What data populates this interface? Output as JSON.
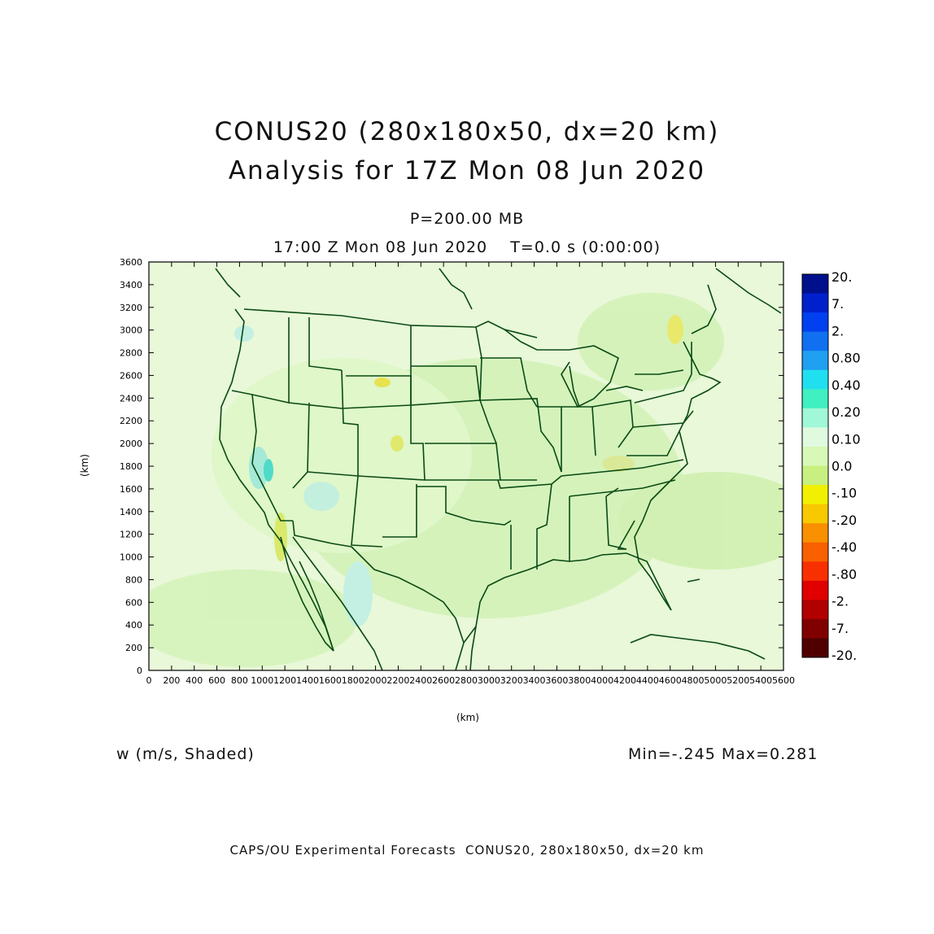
{
  "title": {
    "line1": "CONUS20 (280x180x50, dx=20 km)",
    "line2": "Analysis for 17Z Mon 08 Jun 2020"
  },
  "subtitle": {
    "pressure": "P=200.00 MB",
    "valid_time": "17:00 Z Mon 08 Jun 2020    T=0.0 s (0:00:00)"
  },
  "field_label": "w (m/s, Shaded)",
  "min_max": "Min=-.245 Max=0.281",
  "footer": "CAPS/OU Experimental Forecasts  CONUS20, 280x180x50, dx=20 km",
  "axes": {
    "xlabel": "(km)",
    "ylabel": "(km)",
    "xlim": [
      0,
      5600
    ],
    "ylim": [
      0,
      3600
    ],
    "xticks": [
      "0",
      "200",
      "400",
      "600",
      "800",
      "1000",
      "1200",
      "1400",
      "1600",
      "1800",
      "2000",
      "2200",
      "2400",
      "2600",
      "2800",
      "3000",
      "3200",
      "3400",
      "3600",
      "3800",
      "4000",
      "4200",
      "4400",
      "4600",
      "4800",
      "5000",
      "5200",
      "5400",
      "5600"
    ],
    "yticks": [
      "0",
      "200",
      "400",
      "600",
      "800",
      "1000",
      "1200",
      "1400",
      "1600",
      "1800",
      "2000",
      "2200",
      "2400",
      "2600",
      "2800",
      "3000",
      "3200",
      "3400",
      "3600"
    ]
  },
  "colorbar": {
    "labels": [
      "20.",
      "7.",
      "2.",
      "0.80",
      "0.40",
      "0.20",
      "0.10",
      "0.0",
      "-.10",
      "-.20",
      "-.40",
      "-.80",
      "-2.",
      "-7.",
      "-20."
    ],
    "colors": [
      "#00108c",
      "#0020cc",
      "#0040f0",
      "#1070f0",
      "#20a0f0",
      "#20e0f0",
      "#40f0c0",
      "#a0f8d8",
      "#e0fae0",
      "#d8f8b8",
      "#c8f080",
      "#f0f000",
      "#f8c800",
      "#f89000",
      "#f86000",
      "#f83000",
      "#e00000",
      "#b00000",
      "#800000",
      "#500000"
    ],
    "legend_placement": "right"
  },
  "map": {
    "background_color": "#e8f8d8",
    "land_color": "#d8f4c0",
    "boundary_color": "#0a4a14"
  }
}
